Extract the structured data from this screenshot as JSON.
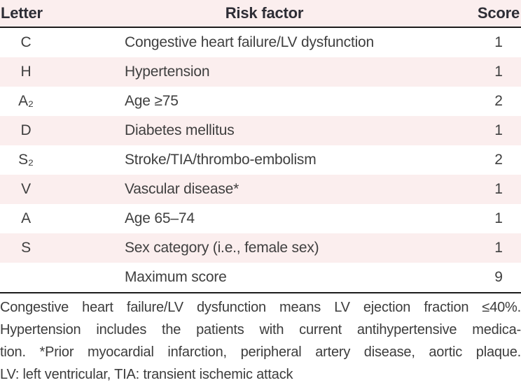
{
  "table": {
    "columns": {
      "letter": "Letter",
      "risk_factor": "Risk factor",
      "score": "Score"
    },
    "rows": [
      {
        "letter": "C",
        "risk_factor": "Congestive heart failure/LV dysfunction",
        "score": "1"
      },
      {
        "letter": "H",
        "risk_factor": "Hypertension",
        "score": "1"
      },
      {
        "letter": "A₂",
        "risk_factor": "Age ≥75",
        "score": "2"
      },
      {
        "letter": "D",
        "risk_factor": "Diabetes mellitus",
        "score": "1"
      },
      {
        "letter": "S₂",
        "risk_factor": "Stroke/TIA/thrombo-embolism",
        "score": "2"
      },
      {
        "letter": "V",
        "risk_factor": "Vascular disease*",
        "score": "1"
      },
      {
        "letter": "A",
        "risk_factor": "Age 65–74",
        "score": "1"
      },
      {
        "letter": "S",
        "risk_factor": "Sex category (i.e., female sex)",
        "score": "1"
      },
      {
        "letter": "",
        "risk_factor": "Maximum score",
        "score": "9"
      }
    ]
  },
  "footnote": {
    "lines": [
      "Congestive heart failure/LV dysfunction means LV ejection fraction ≤40%.",
      "Hypertension includes the patients with current antihypertensive medica-",
      "tion. *Prior myocardial infarction, peripheral artery disease, aortic plaque.",
      "LV: left ventricular, TIA: transient ischemic attack"
    ],
    "full_text": "Congestive heart failure/LV dysfunction means LV ejection fraction ≤40%. Hypertension includes the patients with current antihypertensive medication. *Prior myocardial infarction, peripheral artery disease, aortic plaque. LV: left ventricular, TIA: transient ischemic attack"
  },
  "colors": {
    "row_pink": "#fbeeee",
    "row_white": "#ffffff",
    "rule": "#1c1c1c",
    "header_text": "#2d2d35",
    "body_text": "#3f3f3f"
  }
}
